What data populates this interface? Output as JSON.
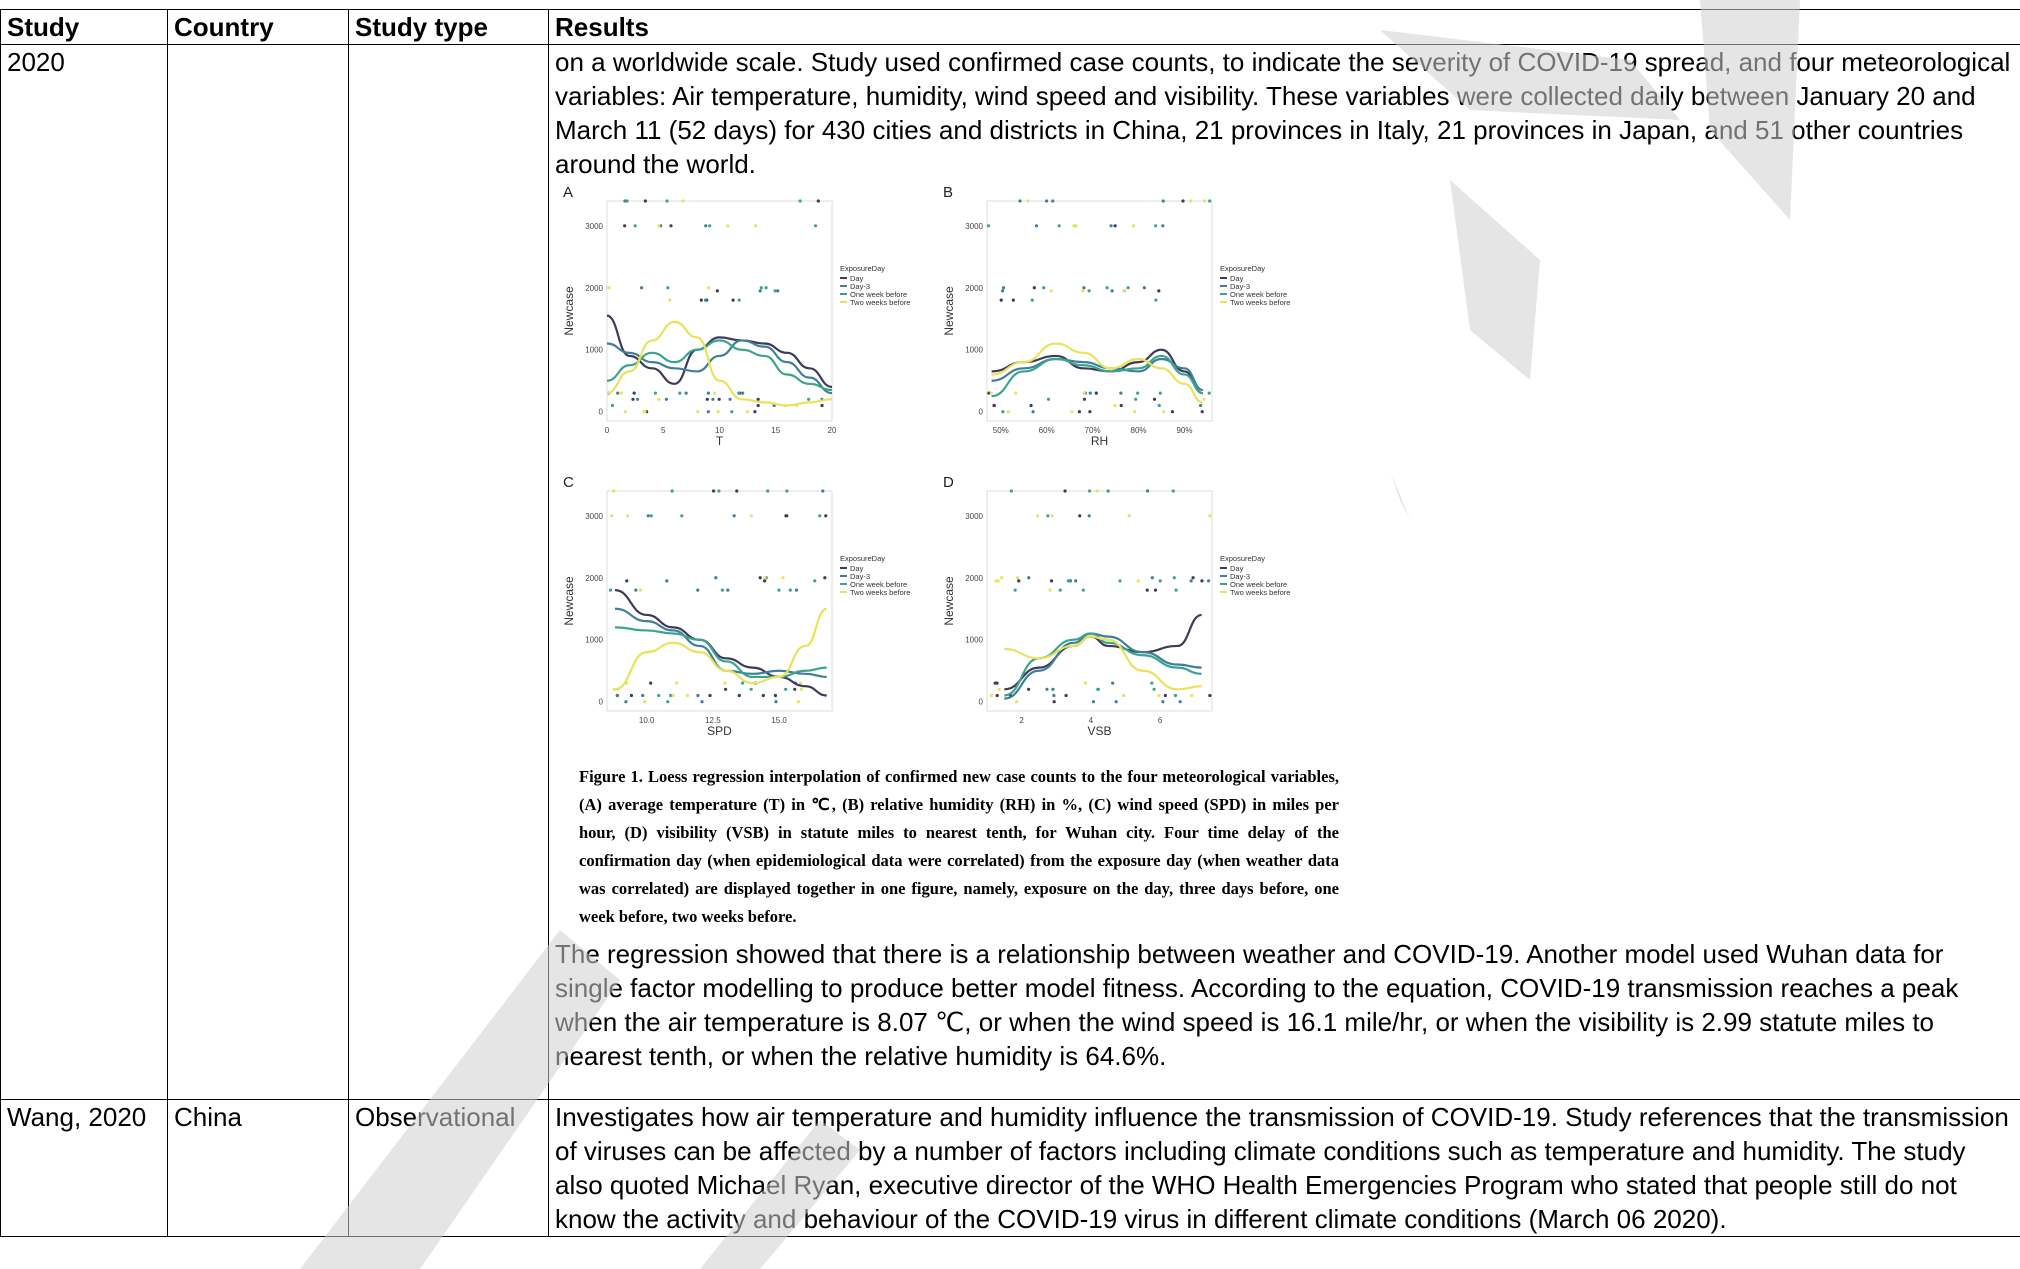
{
  "table": {
    "headers": [
      "Study",
      "Country",
      "Study type",
      "Results"
    ],
    "row1": {
      "study": "2020",
      "country": "",
      "type": "",
      "intro": "on a worldwide scale. Study used confirmed case counts, to indicate the severity of COVID-19 spread, and four meteorological variables: Air temperature, humidity, wind speed and visibility. These variables were collected daily between January 20 and March 11 (52 days) for 430 cities and districts in China, 21 provinces in Italy, 21 provinces in Japan, and 51 other countries around the world.",
      "caption": "Figure 1. Loess regression interpolation of confirmed new case counts to the four meteorological variables, (A) average temperature (T) in ℃, (B) relative humidity (RH) in %, (C) wind speed (SPD) in miles per hour, (D) visibility (VSB) in statute miles to nearest tenth, for Wuhan city. Four time delay of the confirmation day (when epidemiological data were correlated) from the exposure day (when weather data was correlated) are displayed together in one figure, namely, exposure on the day, three days before, one week before, two weeks before.",
      "conclusion": "The regression showed that there is a relationship between weather and COVID-19.  Another model used Wuhan data for single factor modelling to produce better model fitness. According to the equation, COVID-19 transmission reaches a peak when the air temperature is 8.07 ℃, or when the wind speed is 16.1 mile/hr, or when the visibility is 2.99 statute miles to nearest tenth, or when the relative humidity is 64.6%."
    },
    "row2": {
      "study": "Wang, 2020",
      "country": "China",
      "type": "Observational",
      "results": "Investigates how air temperature and humidity influence the transmission of COVID-19. Study references that the transmission of viruses can be affected by a number of factors including climate conditions such as temperature and humidity. The study also quoted Michael Ryan, executive director of the WHO Health Emergencies Program who stated that people still do not know the activity and behaviour of the COVID-19 virus in different climate conditions (March 06 2020)."
    }
  },
  "watermark": {
    "color": "#cfcfcf",
    "kind": "draft-watermark"
  },
  "chart_data": [
    {
      "type": "line",
      "panel": "A",
      "xlabel": "T",
      "ylabel": "Newcase",
      "x_ticks": [
        "0",
        "5",
        "10",
        "15",
        "20"
      ],
      "y_ticks": [
        "0",
        "1000",
        "2000",
        "3000"
      ],
      "xlim": [
        0,
        20
      ],
      "ylim": [
        -150,
        3400
      ],
      "legend_title": "ExposureDay",
      "legend": [
        "Day",
        "Day-3",
        "One week before",
        "Two weeks before"
      ],
      "series": [
        {
          "name": "Day",
          "color": "#3e3a5a",
          "x": [
            0,
            2,
            4,
            6,
            8,
            10,
            12,
            14,
            16,
            18,
            20
          ],
          "values": [
            1550,
            900,
            700,
            450,
            1000,
            1200,
            1150,
            1100,
            950,
            700,
            400
          ]
        },
        {
          "name": "Day-3",
          "color": "#3f7f9a",
          "x": [
            0,
            2,
            4,
            6,
            8,
            10,
            12,
            14,
            16,
            18,
            20
          ],
          "values": [
            1100,
            950,
            800,
            700,
            650,
            900,
            1150,
            1050,
            800,
            550,
            300
          ]
        },
        {
          "name": "One week before",
          "color": "#3aa58c",
          "x": [
            0,
            2,
            4,
            6,
            8,
            10,
            12,
            14,
            16,
            18,
            20
          ],
          "values": [
            500,
            750,
            950,
            800,
            1000,
            1150,
            1000,
            900,
            600,
            450,
            350
          ]
        },
        {
          "name": "Two weeks before",
          "color": "#e8e35a",
          "x": [
            0,
            2,
            4,
            6,
            8,
            10,
            12,
            14,
            16,
            18,
            20
          ],
          "values": [
            300,
            650,
            1150,
            1450,
            1200,
            500,
            200,
            150,
            100,
            150,
            200
          ]
        }
      ]
    },
    {
      "type": "line",
      "panel": "B",
      "xlabel": "RH",
      "ylabel": "Newcase",
      "x_ticks": [
        "50%",
        "60%",
        "70%",
        "80%",
        "90%"
      ],
      "y_ticks": [
        "0",
        "1000",
        "2000",
        "3000"
      ],
      "xlim": [
        47,
        96
      ],
      "ylim": [
        -150,
        3400
      ],
      "legend_title": "ExposureDay",
      "legend": [
        "Day",
        "Day-3",
        "One week before",
        "Two weeks before"
      ],
      "series": [
        {
          "name": "Day",
          "color": "#3e3a5a",
          "x": [
            48,
            55,
            62,
            68,
            74,
            80,
            85,
            90,
            94
          ],
          "values": [
            650,
            800,
            900,
            700,
            650,
            800,
            1000,
            650,
            300
          ]
        },
        {
          "name": "Day-3",
          "color": "#3f7f9a",
          "x": [
            48,
            55,
            62,
            68,
            74,
            80,
            85,
            90,
            94
          ],
          "values": [
            500,
            700,
            850,
            800,
            700,
            650,
            850,
            700,
            350
          ]
        },
        {
          "name": "One week before",
          "color": "#3aa58c",
          "x": [
            48,
            55,
            62,
            68,
            74,
            80,
            85,
            90,
            94
          ],
          "values": [
            250,
            650,
            850,
            750,
            650,
            700,
            900,
            600,
            300
          ]
        },
        {
          "name": "Two weeks before",
          "color": "#e8e35a",
          "x": [
            48,
            55,
            62,
            68,
            74,
            80,
            85,
            90,
            94
          ],
          "values": [
            600,
            800,
            1100,
            950,
            700,
            850,
            700,
            450,
            150
          ]
        }
      ]
    },
    {
      "type": "line",
      "panel": "C",
      "xlabel": "SPD",
      "ylabel": "Newcase",
      "x_ticks": [
        "10.0",
        "12.5",
        "15.0"
      ],
      "y_ticks": [
        "0",
        "1000",
        "2000",
        "3000"
      ],
      "xlim": [
        8.5,
        17
      ],
      "ylim": [
        -150,
        3400
      ],
      "legend_title": "ExposureDay",
      "legend": [
        "Day",
        "Day-3",
        "One week before",
        "Two weeks before"
      ],
      "series": [
        {
          "name": "Day",
          "color": "#3e3a5a",
          "x": [
            8.8,
            10,
            11,
            12,
            13,
            14,
            15,
            16,
            16.8
          ],
          "values": [
            1800,
            1400,
            1200,
            1000,
            700,
            550,
            400,
            250,
            100
          ]
        },
        {
          "name": "Day-3",
          "color": "#3f7f9a",
          "x": [
            8.8,
            10,
            11,
            12,
            13,
            14,
            15,
            16,
            16.8
          ],
          "values": [
            1500,
            1300,
            1150,
            900,
            500,
            450,
            500,
            450,
            400
          ]
        },
        {
          "name": "One week before",
          "color": "#3aa58c",
          "x": [
            8.8,
            10,
            11,
            12,
            13,
            14,
            15,
            16,
            16.8
          ],
          "values": [
            1200,
            1150,
            1100,
            1000,
            650,
            400,
            400,
            500,
            550
          ]
        },
        {
          "name": "Two weeks before",
          "color": "#e8e35a",
          "x": [
            8.8,
            10,
            11,
            12,
            13,
            14,
            15,
            16,
            16.8
          ],
          "values": [
            200,
            800,
            950,
            800,
            500,
            300,
            400,
            900,
            1500
          ]
        }
      ]
    },
    {
      "type": "line",
      "panel": "D",
      "xlabel": "VSB",
      "ylabel": "Newcase",
      "x_ticks": [
        "2",
        "4",
        "6"
      ],
      "y_ticks": [
        "0",
        "1000",
        "2000",
        "3000"
      ],
      "xlim": [
        1,
        7.5
      ],
      "ylim": [
        -150,
        3400
      ],
      "legend_title": "ExposureDay",
      "legend": [
        "Day",
        "Day-3",
        "One week before",
        "Two weeks before"
      ],
      "series": [
        {
          "name": "Day",
          "color": "#3e3a5a",
          "x": [
            1.5,
            2.5,
            3.5,
            4,
            4.5,
            5.5,
            6.5,
            7.2
          ],
          "values": [
            200,
            550,
            900,
            1050,
            900,
            800,
            900,
            1400
          ]
        },
        {
          "name": "Day-3",
          "color": "#3f7f9a",
          "x": [
            1.5,
            2.5,
            3.5,
            4,
            4.5,
            5.5,
            6.5,
            7.2
          ],
          "values": [
            50,
            500,
            950,
            1100,
            1050,
            800,
            600,
            550
          ]
        },
        {
          "name": "One week before",
          "color": "#3aa58c",
          "x": [
            1.5,
            2.5,
            3.5,
            4,
            4.5,
            5.5,
            6.5,
            7.2
          ],
          "values": [
            100,
            700,
            1000,
            1100,
            950,
            750,
            550,
            450
          ]
        },
        {
          "name": "Two weeks before",
          "color": "#e8e35a",
          "x": [
            1.5,
            2.5,
            3.5,
            4,
            4.5,
            5.5,
            6.5,
            7.2
          ],
          "values": [
            850,
            700,
            900,
            1050,
            1000,
            500,
            200,
            250
          ]
        }
      ]
    }
  ]
}
